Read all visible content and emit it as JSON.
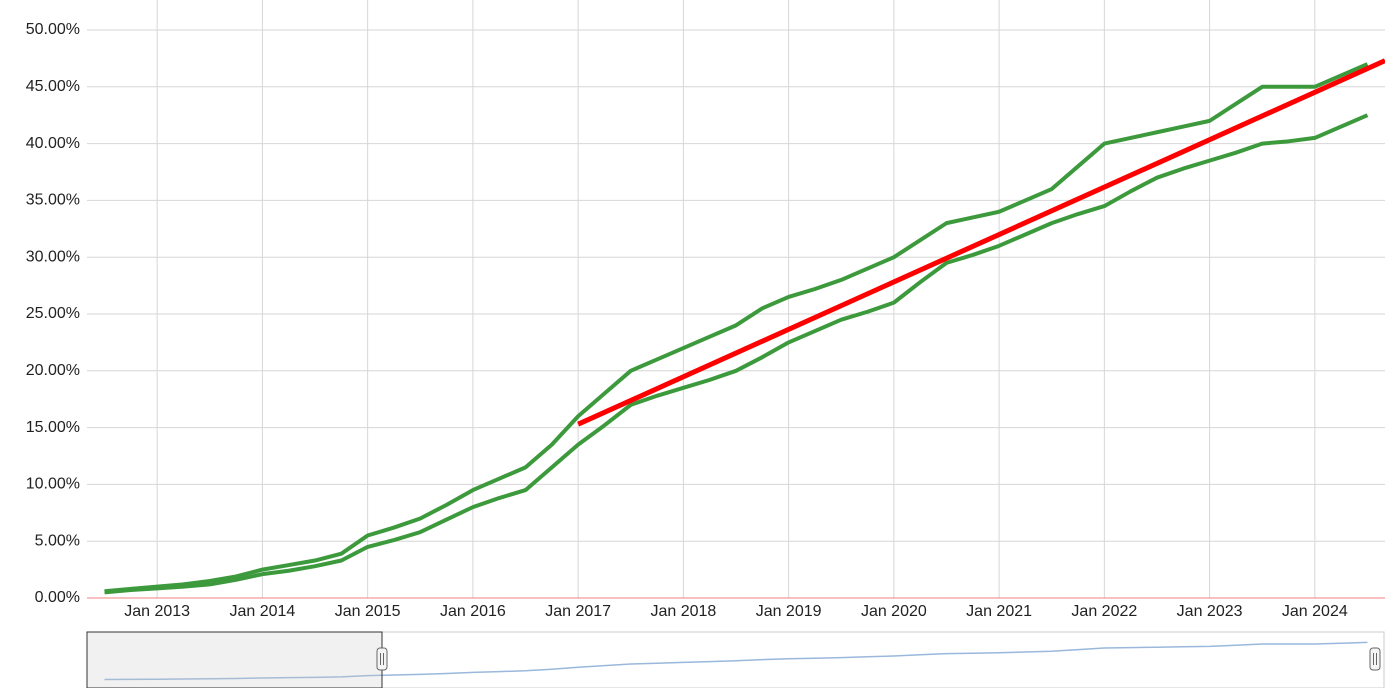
{
  "chart_data": {
    "type": "line",
    "x": [
      "2012-07",
      "2012-10",
      "2013-01",
      "2013-04",
      "2013-07",
      "2013-10",
      "2014-01",
      "2014-04",
      "2014-07",
      "2014-10",
      "2015-01",
      "2015-04",
      "2015-07",
      "2015-10",
      "2016-01",
      "2016-04",
      "2016-07",
      "2016-10",
      "2017-01",
      "2017-04",
      "2017-07",
      "2017-10",
      "2018-01",
      "2018-04",
      "2018-07",
      "2018-10",
      "2019-01",
      "2019-04",
      "2019-07",
      "2019-10",
      "2020-01",
      "2020-04",
      "2020-07",
      "2020-10",
      "2021-01",
      "2021-04",
      "2021-07",
      "2021-10",
      "2022-01",
      "2022-04",
      "2022-07",
      "2022-10",
      "2023-01",
      "2023-04",
      "2023-07",
      "2023-10",
      "2024-01",
      "2024-04",
      "2024-07"
    ],
    "series": [
      {
        "color": "#3c9a3c",
        "values": [
          0.6,
          0.8,
          1.0,
          1.2,
          1.5,
          1.9,
          2.5,
          2.9,
          3.3,
          3.9,
          5.5,
          6.2,
          7.0,
          8.2,
          9.5,
          10.5,
          11.5,
          13.5,
          16.0,
          18.0,
          20.0,
          21.0,
          22.0,
          23.0,
          24.0,
          25.5,
          26.5,
          27.2,
          28.0,
          29.0,
          30.0,
          31.5,
          33.0,
          33.5,
          34.0,
          35.0,
          36.0,
          38.0,
          40.0,
          40.5,
          41.0,
          41.5,
          42.0,
          43.5,
          45.0,
          45.0,
          45.0,
          46.0,
          47.0
        ]
      },
      {
        "color": "#3c9a3c",
        "values": [
          0.5,
          0.7,
          0.85,
          1.0,
          1.2,
          1.6,
          2.1,
          2.4,
          2.8,
          3.3,
          4.5,
          5.1,
          5.8,
          6.9,
          8.0,
          8.8,
          9.5,
          11.5,
          13.5,
          15.2,
          17.0,
          17.8,
          18.5,
          19.2,
          20.0,
          21.2,
          22.5,
          23.5,
          24.5,
          25.2,
          26.0,
          27.8,
          29.5,
          30.2,
          31.0,
          32.0,
          33.0,
          33.8,
          34.5,
          35.8,
          37.0,
          37.8,
          38.5,
          39.2,
          40.0,
          40.2,
          40.5,
          41.5,
          42.5
        ]
      }
    ],
    "trend": {
      "color": "#ff0000",
      "x": [
        "2017-01",
        "2024-09"
      ],
      "values": [
        15.3,
        47.3
      ]
    },
    "xlim": [
      "2012-05",
      "2024-09"
    ],
    "xticks": [
      {
        "value": "2013-01",
        "label": "Jan 2013"
      },
      {
        "value": "2014-01",
        "label": "Jan 2014"
      },
      {
        "value": "2015-01",
        "label": "Jan 2015"
      },
      {
        "value": "2016-01",
        "label": "Jan 2016"
      },
      {
        "value": "2017-01",
        "label": "Jan 2017"
      },
      {
        "value": "2018-01",
        "label": "Jan 2018"
      },
      {
        "value": "2019-01",
        "label": "Jan 2019"
      },
      {
        "value": "2020-01",
        "label": "Jan 2020"
      },
      {
        "value": "2021-01",
        "label": "Jan 2021"
      },
      {
        "value": "2022-01",
        "label": "Jan 2022"
      },
      {
        "value": "2023-01",
        "label": "Jan 2023"
      },
      {
        "value": "2024-01",
        "label": "Jan 2024"
      }
    ],
    "ylim": [
      0,
      50
    ],
    "yticks": [
      {
        "value": 0,
        "label": "0.00%"
      },
      {
        "value": 5,
        "label": "5.00%"
      },
      {
        "value": 10,
        "label": "10.00%"
      },
      {
        "value": 15,
        "label": "15.00%"
      },
      {
        "value": 20,
        "label": "20.00%"
      },
      {
        "value": 25,
        "label": "25.00%"
      },
      {
        "value": 30,
        "label": "30.00%"
      },
      {
        "value": 35,
        "label": "35.00%"
      },
      {
        "value": 40,
        "label": "40.00%"
      },
      {
        "value": 45,
        "label": "45.00%"
      },
      {
        "value": 50,
        "label": "50.00%"
      }
    ],
    "grid": true
  }
}
